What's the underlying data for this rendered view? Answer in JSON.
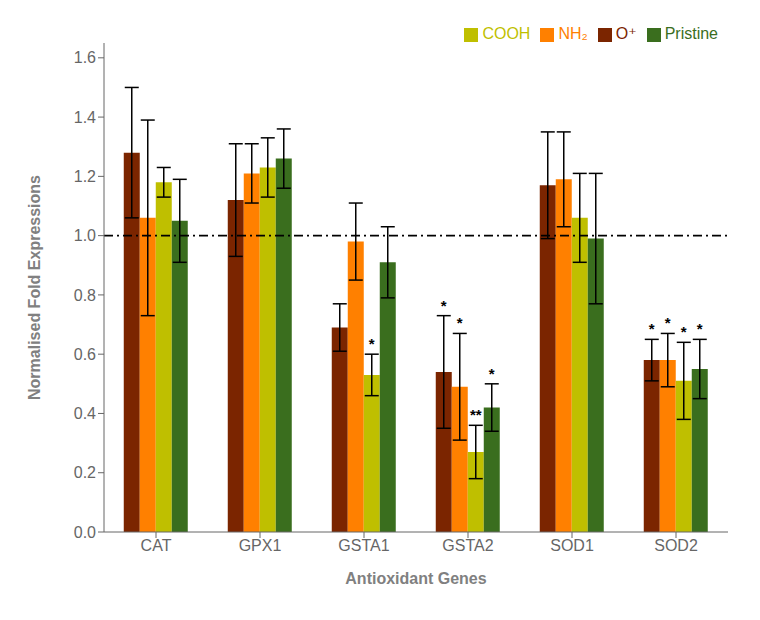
{
  "chart_data": {
    "type": "bar",
    "xlabel": "Antioxidant Genes",
    "ylabel": "Normalised Fold Expressions",
    "categories": [
      "CAT",
      "GPX1",
      "GSTA1",
      "GSTA2",
      "SOD1",
      "SOD2"
    ],
    "series": [
      {
        "name": "O⁺",
        "color": "#7B2500",
        "values": [
          1.28,
          1.12,
          0.69,
          0.54,
          1.17,
          0.58
        ],
        "errors": [
          0.22,
          0.19,
          0.08,
          0.19,
          0.18,
          0.07
        ]
      },
      {
        "name": "NH₂",
        "color": "#FF8000",
        "values": [
          1.06,
          1.21,
          0.98,
          0.49,
          1.19,
          0.58
        ],
        "errors": [
          0.33,
          0.1,
          0.13,
          0.18,
          0.16,
          0.09
        ]
      },
      {
        "name": "COOH",
        "color": "#BFBF00",
        "values": [
          1.18,
          1.23,
          0.53,
          0.27,
          1.06,
          0.51
        ],
        "errors": [
          0.05,
          0.1,
          0.07,
          0.09,
          0.15,
          0.13
        ]
      },
      {
        "name": "Pristine",
        "color": "#3A6E1E",
        "values": [
          1.05,
          1.26,
          0.91,
          0.42,
          0.99,
          0.55
        ],
        "errors": [
          0.14,
          0.1,
          0.12,
          0.08,
          0.22,
          0.1
        ]
      }
    ],
    "annotations": [
      {
        "category": "GSTA1",
        "series": "COOH",
        "text": "*"
      },
      {
        "category": "GSTA2",
        "series": "O⁺",
        "text": "*"
      },
      {
        "category": "GSTA2",
        "series": "NH₂",
        "text": "*"
      },
      {
        "category": "GSTA2",
        "series": "COOH",
        "text": "**"
      },
      {
        "category": "GSTA2",
        "series": "Pristine",
        "text": "*"
      },
      {
        "category": "SOD2",
        "series": "O⁺",
        "text": "*"
      },
      {
        "category": "SOD2",
        "series": "NH₂",
        "text": "*"
      },
      {
        "category": "SOD2",
        "series": "COOH",
        "text": "*"
      },
      {
        "category": "SOD2",
        "series": "Pristine",
        "text": "*"
      }
    ],
    "hline": {
      "y": 1.0,
      "line_style": "dashdot"
    },
    "ylim": [
      0.0,
      1.65
    ],
    "yticks": [
      {
        "value": 0.0,
        "label": "0.0"
      },
      0.2,
      0.4,
      0.6,
      0.8,
      {
        "value": 1.0,
        "label": "1.0"
      },
      1.2,
      1.4,
      1.6
    ],
    "grid": false,
    "legend": "upper right"
  }
}
